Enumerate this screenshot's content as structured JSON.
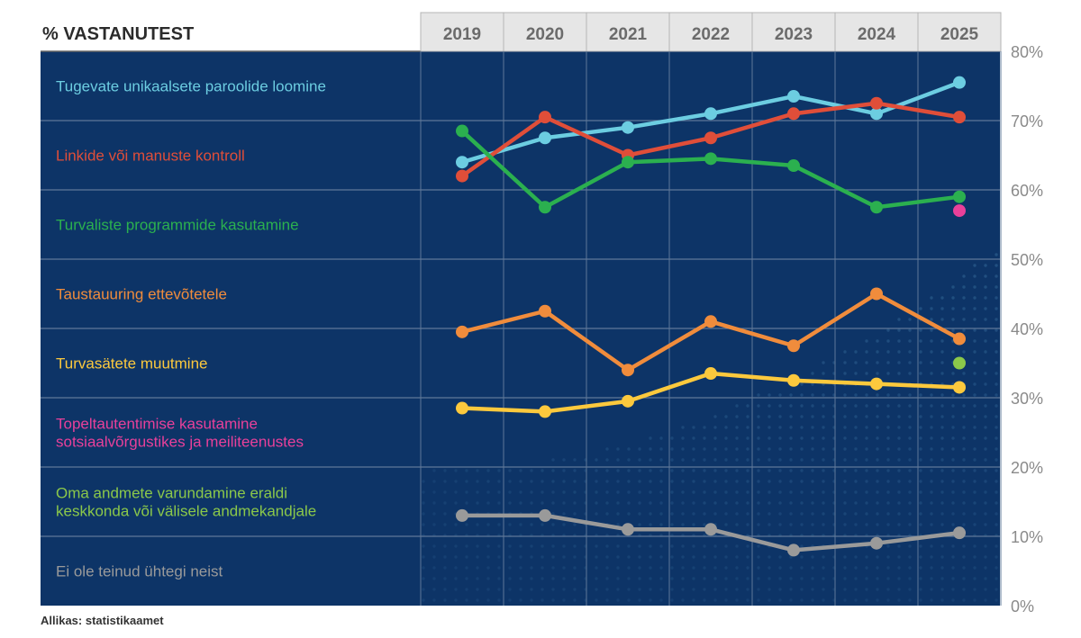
{
  "chart_data": {
    "type": "line",
    "title": "% VASTANUTEST",
    "x": [
      "2019",
      "2020",
      "2021",
      "2022",
      "2023",
      "2024",
      "2025"
    ],
    "ylim": [
      0,
      80
    ],
    "yticks": [
      0,
      10,
      20,
      30,
      40,
      50,
      60,
      70,
      80
    ],
    "ytick_labels": [
      "0%",
      "10%",
      "20%",
      "30%",
      "40%",
      "50%",
      "60%",
      "70%",
      "80%"
    ],
    "series": [
      {
        "name": "Tugevate unikaalsete paroolide loomine",
        "color": "#6ccde1",
        "values": [
          64,
          67.5,
          69,
          71,
          73.5,
          71,
          75.5
        ]
      },
      {
        "name": "Linkide või manuste kontroll",
        "color": "#e04e39",
        "values": [
          62,
          70.5,
          65,
          67.5,
          71,
          72.5,
          70.5
        ]
      },
      {
        "name": "Turvaliste programmide kasutamine",
        "color": "#2bb04f",
        "values": [
          68.5,
          57.5,
          64,
          64.5,
          63.5,
          57.5,
          59
        ]
      },
      {
        "name": "Taustauuring ettevõtetele",
        "color": "#f08c3c",
        "values": [
          39.5,
          42.5,
          34,
          41,
          37.5,
          45,
          38.5
        ]
      },
      {
        "name": "Turvasätete muutmine",
        "color": "#fcc93d",
        "values": [
          28.5,
          28,
          29.5,
          33.5,
          32.5,
          32,
          31.5
        ]
      },
      {
        "name": "Topeltautentimise kasutamine sotsiaalvõrgustikes ja meiliteenustes",
        "color": "#e8409a",
        "values": [
          null,
          null,
          null,
          null,
          null,
          null,
          57
        ]
      },
      {
        "name": "Oma andmete varundamine eraldi keskkonda või välisele andmekandjale",
        "color": "#8bc84a",
        "values": [
          null,
          null,
          null,
          null,
          null,
          null,
          35
        ]
      },
      {
        "name": "Ei ole teinud ühtegi neist",
        "color": "#9a9a9a",
        "values": [
          13,
          13,
          11,
          11,
          8,
          9,
          10.5
        ]
      }
    ],
    "legend_labels": [
      {
        "lines": [
          "Tugevate unikaalsete paroolide loomine"
        ],
        "color": "#6ccde1"
      },
      {
        "lines": [
          "Linkide või manuste kontroll"
        ],
        "color": "#e04e39"
      },
      {
        "lines": [
          "Turvaliste programmide kasutamine"
        ],
        "color": "#2bb04f"
      },
      {
        "lines": [
          "Taustauuring ettevõtetele"
        ],
        "color": "#f08c3c"
      },
      {
        "lines": [
          "Turvasätete muutmine"
        ],
        "color": "#fcc93d"
      },
      {
        "lines": [
          "Topeltautentimise kasutamine",
          "sotsiaalvõrgustikes ja meiliteenustes"
        ],
        "color": "#e8409a"
      },
      {
        "lines": [
          "Oma andmete varundamine eraldi",
          "keskkonda või välisele andmekandjale"
        ],
        "color": "#8bc84a"
      },
      {
        "lines": [
          "Ei ole teinud ühtegi neist"
        ],
        "color": "#9a9a9a"
      }
    ],
    "source": "Allikas: statistikaamet",
    "colors": {
      "plot_bg": "#0d3467",
      "header_bg": "#e6e6e6",
      "grid": "#5f7898"
    }
  }
}
